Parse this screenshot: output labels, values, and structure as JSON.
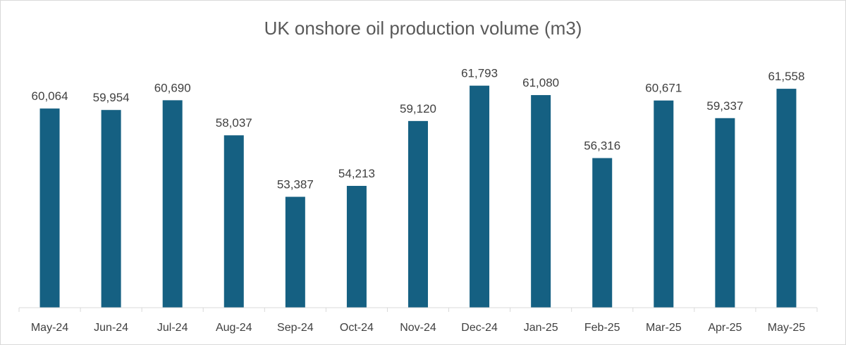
{
  "chart_data": {
    "type": "bar",
    "title": "UK onshore oil production volume (m3)",
    "xlabel": "",
    "ylabel": "",
    "categories": [
      "May-24",
      "Jun-24",
      "Jul-24",
      "Aug-24",
      "Sep-24",
      "Oct-24",
      "Nov-24",
      "Dec-24",
      "Jan-25",
      "Feb-25",
      "Mar-25",
      "Apr-25",
      "May-25"
    ],
    "values": [
      60064,
      59954,
      60690,
      58037,
      53387,
      54213,
      59120,
      61793,
      61080,
      56316,
      60671,
      59337,
      61558
    ],
    "value_labels": [
      "60,064",
      "59,954",
      "60,690",
      "58,037",
      "53,387",
      "54,213",
      "59,120",
      "61,793",
      "61,080",
      "56,316",
      "60,671",
      "59,337",
      "61,558"
    ],
    "ylim": [
      45000,
      63000
    ],
    "grid": false,
    "legend": "none",
    "bar_color": "#156082",
    "axis_color": "#d9d9d9"
  }
}
